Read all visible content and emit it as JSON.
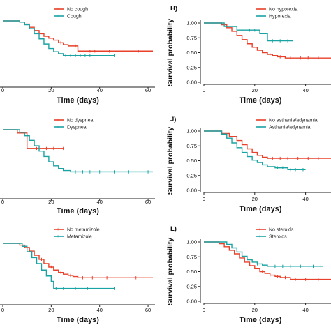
{
  "colors": {
    "red": "#e8402a",
    "teal": "#1aa3a3"
  },
  "chart_data": [
    {
      "type": "line",
      "panel": "G",
      "panel_label": "",
      "xlabel": "Time (days)",
      "ylabel": "",
      "xlim": [
        0,
        62
      ],
      "ylim": [
        0,
        1
      ],
      "xticks": [
        "0",
        "20",
        "40",
        "60"
      ],
      "yticks": [],
      "series": [
        {
          "name": "No cough",
          "color": "red",
          "x": [
            0,
            7,
            9,
            11,
            13,
            15,
            17,
            19,
            21,
            23,
            25,
            27,
            31,
            62
          ],
          "y": [
            1.0,
            0.98,
            0.95,
            0.9,
            0.85,
            0.8,
            0.76,
            0.73,
            0.7,
            0.66,
            0.63,
            0.61,
            0.53,
            0.53
          ],
          "censor_x": [
            24,
            27,
            30,
            36,
            38,
            44,
            56
          ]
        },
        {
          "name": "Cough",
          "color": "teal",
          "x": [
            0,
            7,
            9,
            11,
            13,
            15,
            17,
            19,
            21,
            23,
            25,
            46
          ],
          "y": [
            1.0,
            0.98,
            0.94,
            0.88,
            0.8,
            0.72,
            0.64,
            0.57,
            0.52,
            0.49,
            0.46,
            0.46
          ],
          "censor_x": [
            26,
            28,
            30,
            32,
            34,
            36,
            46
          ]
        }
      ]
    },
    {
      "type": "line",
      "panel": "H",
      "panel_label": "H)",
      "xlabel": "Time (days)",
      "ylabel": "Survival probability",
      "xlim": [
        0,
        50
      ],
      "ylim": [
        0,
        1
      ],
      "xticks": [
        "0",
        "20",
        "40"
      ],
      "yticks": [
        "0.00",
        "0.25",
        "0.50",
        "0.75",
        "1.00"
      ],
      "series": [
        {
          "name": "No hyporexia",
          "color": "red",
          "x": [
            0,
            7,
            9,
            11,
            13,
            15,
            17,
            19,
            21,
            23,
            25,
            27,
            29,
            32,
            50
          ],
          "y": [
            1.0,
            0.97,
            0.92,
            0.86,
            0.79,
            0.72,
            0.65,
            0.59,
            0.54,
            0.5,
            0.47,
            0.45,
            0.43,
            0.41,
            0.41
          ],
          "censor_x": [
            26,
            30,
            34,
            38,
            41,
            45
          ]
        },
        {
          "name": "Hyporexia",
          "color": "teal",
          "x": [
            0,
            8,
            13,
            22,
            25,
            35
          ],
          "y": [
            1.0,
            0.94,
            0.88,
            0.82,
            0.7,
            0.7
          ],
          "censor_x": [
            15,
            18,
            20,
            27,
            30,
            33
          ]
        }
      ]
    },
    {
      "type": "line",
      "panel": "I",
      "panel_label": "",
      "xlabel": "Time (days)",
      "ylabel": "",
      "xlim": [
        0,
        62
      ],
      "ylim": [
        0,
        1
      ],
      "xticks": [
        "0",
        "20",
        "40",
        "60"
      ],
      "yticks": [],
      "series": [
        {
          "name": "No dyspnea",
          "color": "red",
          "x": [
            0,
            6,
            10,
            25
          ],
          "y": [
            1.0,
            0.95,
            0.72,
            0.72
          ],
          "censor_x": [
            14,
            18,
            21,
            25
          ]
        },
        {
          "name": "Dyspnea",
          "color": "teal",
          "x": [
            0,
            7,
            9,
            11,
            13,
            15,
            17,
            19,
            21,
            23,
            25,
            28,
            62
          ],
          "y": [
            1.0,
            0.96,
            0.91,
            0.84,
            0.76,
            0.68,
            0.6,
            0.52,
            0.46,
            0.42,
            0.39,
            0.37,
            0.37
          ],
          "censor_x": [
            30,
            33,
            36,
            40,
            46,
            52,
            60
          ]
        }
      ]
    },
    {
      "type": "line",
      "panel": "J",
      "panel_label": "J)",
      "xlabel": "Time (days)",
      "ylabel": "Survival probability",
      "xlim": [
        0,
        50
      ],
      "ylim": [
        0,
        1
      ],
      "xticks": [
        "0",
        "20",
        "40"
      ],
      "yticks": [
        "0.00",
        "0.25",
        "0.50",
        "0.75",
        "1.00"
      ],
      "series": [
        {
          "name": "No asthenia/adynamia",
          "color": "red",
          "x": [
            0,
            7,
            10,
            13,
            15,
            17,
            19,
            21,
            23,
            25,
            50
          ],
          "y": [
            1.0,
            0.96,
            0.91,
            0.84,
            0.77,
            0.7,
            0.64,
            0.59,
            0.56,
            0.54,
            0.54
          ],
          "censor_x": [
            27,
            30,
            33,
            37,
            41,
            45
          ]
        },
        {
          "name": "Asthenia/adynamia",
          "color": "teal",
          "x": [
            0,
            7,
            9,
            11,
            13,
            15,
            17,
            19,
            21,
            23,
            25,
            28,
            33,
            40
          ],
          "y": [
            1.0,
            0.95,
            0.88,
            0.8,
            0.72,
            0.64,
            0.57,
            0.51,
            0.47,
            0.43,
            0.4,
            0.38,
            0.35,
            0.35
          ],
          "censor_x": [
            29,
            31,
            34,
            36,
            39
          ]
        }
      ]
    },
    {
      "type": "line",
      "panel": "K",
      "panel_label": "",
      "xlabel": "Time (days)",
      "ylabel": "",
      "xlim": [
        0,
        62
      ],
      "ylim": [
        0,
        1
      ],
      "xticks": [
        "0",
        "20",
        "40",
        "60"
      ],
      "yticks": [],
      "series": [
        {
          "name": "No metamizole",
          "color": "red",
          "x": [
            0,
            7,
            9,
            11,
            13,
            15,
            17,
            19,
            21,
            23,
            25,
            27,
            29,
            31,
            62
          ],
          "y": [
            1.0,
            0.97,
            0.93,
            0.87,
            0.8,
            0.73,
            0.66,
            0.6,
            0.55,
            0.51,
            0.48,
            0.46,
            0.44,
            0.42,
            0.42
          ],
          "censor_x": [
            16,
            20,
            24,
            28,
            33,
            37,
            43,
            55
          ]
        },
        {
          "name": "Metamizole",
          "color": "teal",
          "x": [
            0,
            8,
            10,
            12,
            14,
            16,
            18,
            20,
            21,
            46
          ],
          "y": [
            1.0,
            0.95,
            0.86,
            0.76,
            0.66,
            0.55,
            0.45,
            0.36,
            0.24,
            0.24
          ],
          "censor_x": [
            22,
            25,
            30,
            35,
            46
          ]
        }
      ]
    },
    {
      "type": "line",
      "panel": "L",
      "panel_label": "L)",
      "xlabel": "Time (days)",
      "ylabel": "Survival probability",
      "xlim": [
        0,
        50
      ],
      "ylim": [
        0,
        1
      ],
      "xticks": [
        "0",
        "20",
        "40"
      ],
      "yticks": [
        "0.00",
        "0.25",
        "0.50",
        "0.75",
        "1.00"
      ],
      "series": [
        {
          "name": "No steroids",
          "color": "red",
          "x": [
            0,
            6,
            8,
            10,
            12,
            14,
            16,
            18,
            20,
            22,
            24,
            26,
            28,
            30,
            34,
            50
          ],
          "y": [
            1.0,
            0.97,
            0.92,
            0.86,
            0.8,
            0.73,
            0.66,
            0.6,
            0.55,
            0.5,
            0.47,
            0.44,
            0.42,
            0.4,
            0.37,
            0.37
          ],
          "censor_x": [
            23,
            26,
            29,
            32,
            36,
            40,
            45
          ]
        },
        {
          "name": "Steroids",
          "color": "teal",
          "x": [
            0,
            9,
            11,
            13,
            15,
            17,
            19,
            21,
            23,
            25,
            47
          ],
          "y": [
            1.0,
            0.96,
            0.9,
            0.83,
            0.76,
            0.7,
            0.66,
            0.63,
            0.61,
            0.59,
            0.59
          ],
          "censor_x": [
            21,
            24,
            28,
            31,
            34,
            38,
            43,
            46
          ]
        }
      ]
    }
  ]
}
